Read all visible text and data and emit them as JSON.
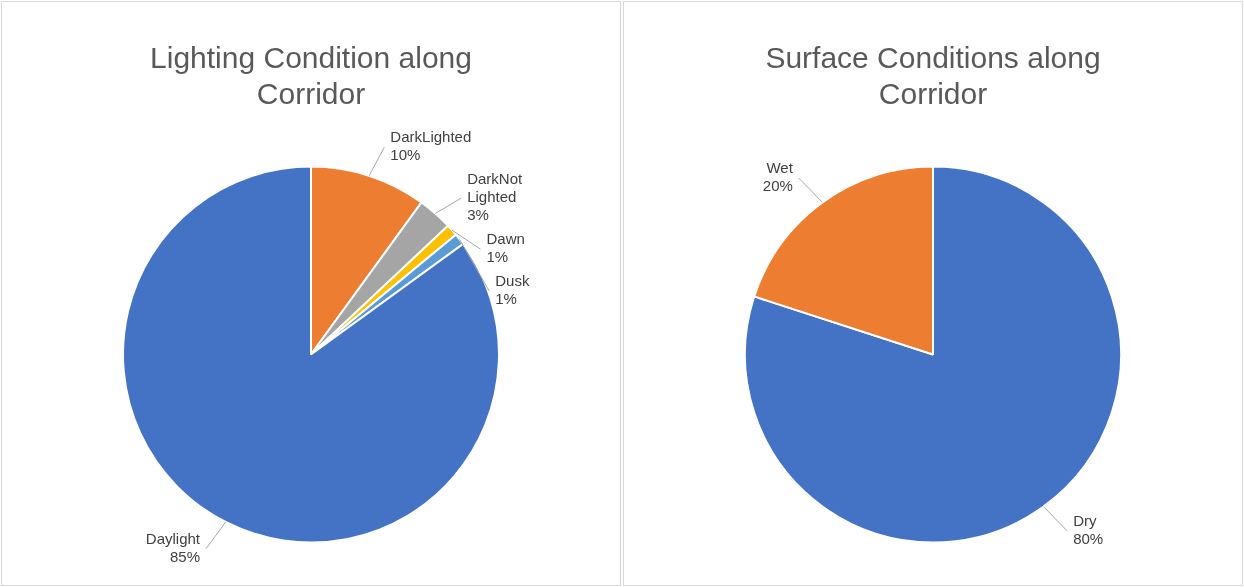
{
  "chart_data": [
    {
      "type": "pie",
      "title": "Lighting Condition along Corridor",
      "categories": [
        "DarkLighted",
        "DarkNot Lighted",
        "Dawn",
        "Dusk",
        "Daylight"
      ],
      "values": [
        10,
        3,
        1,
        1,
        85
      ],
      "colors": [
        "#ed7d31",
        "#a5a5a5",
        "#ffc000",
        "#5b9bd5",
        "#4472c4"
      ],
      "value_labels": [
        "10%",
        "3%",
        "1%",
        "1%",
        "85%"
      ],
      "legend": false
    },
    {
      "type": "pie",
      "title": "Surface Conditions along Corridor",
      "categories": [
        "Dry",
        "Wet"
      ],
      "values": [
        80,
        20
      ],
      "colors": [
        "#4472c4",
        "#ed7d31"
      ],
      "value_labels": [
        "80%",
        "20%"
      ],
      "legend": false
    }
  ]
}
